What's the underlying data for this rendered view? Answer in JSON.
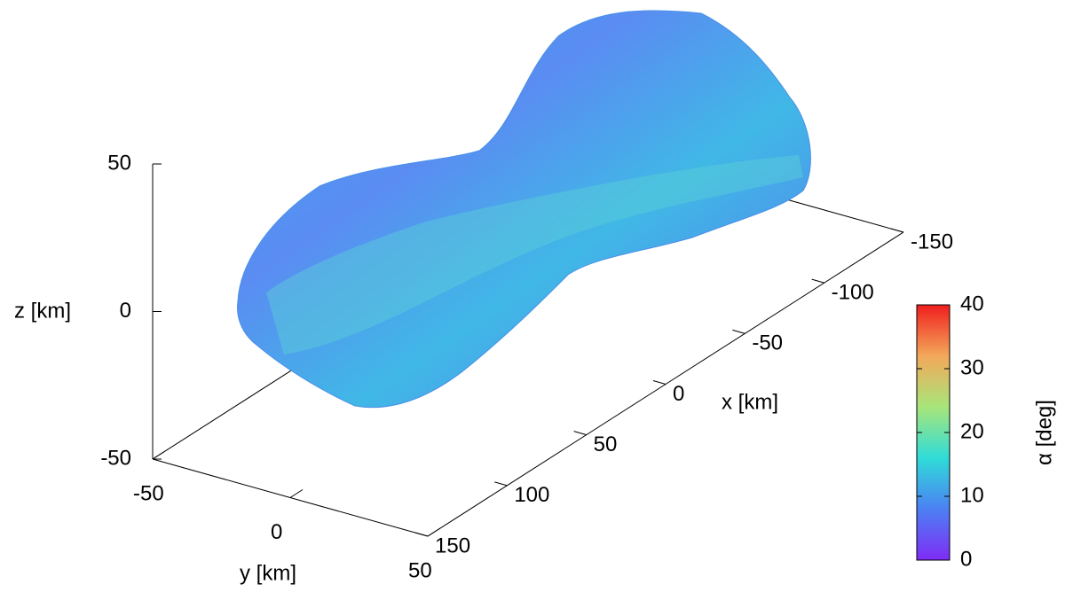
{
  "chart_data": {
    "type": "surface3d",
    "xlabel": "x [km]",
    "ylabel": "y [km]",
    "zlabel": "z [km]",
    "xlim": [
      -150,
      150
    ],
    "xticks": [
      -150,
      -100,
      -50,
      0,
      50,
      100,
      150
    ],
    "ylim": [
      -50,
      50
    ],
    "yticks": [
      -50,
      0,
      50
    ],
    "zlim": [
      -50,
      50
    ],
    "zticks": [
      -50,
      0,
      50
    ],
    "colorbar_label": "α [deg]",
    "clim": [
      0,
      40
    ],
    "cticks": [
      0,
      10,
      20,
      30,
      40
    ],
    "colormap": [
      "#7f2cf5",
      "#4c80f3",
      "#2fdcd8",
      "#a8e57a",
      "#f3a85a",
      "#f01e1e"
    ]
  }
}
